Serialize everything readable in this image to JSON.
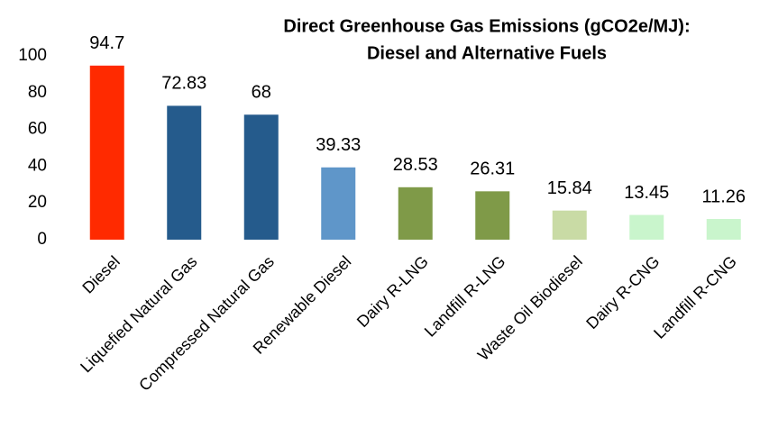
{
  "chart_data": {
    "type": "bar",
    "title": [
      "Direct Greenhouse Gas Emissions (gCO2e/MJ):",
      "Diesel and Alternative Fuels"
    ],
    "categories": [
      "Diesel",
      "Liquefied Natural Gas",
      "Compressed Natural Gas",
      "Renewable Diesel",
      "Dairy R-LNG",
      "Landfill R-LNG",
      "Waste Oil Biodiesel",
      "Dairy R-CNG",
      "Landfill R-CNG"
    ],
    "values": [
      94.7,
      72.83,
      68,
      39.33,
      28.53,
      26.31,
      15.84,
      13.45,
      11.26
    ],
    "colors": [
      "#ff2a00",
      "#255b8c",
      "#255b8c",
      "#5f96c9",
      "#7f9a48",
      "#7f9a48",
      "#c9dba5",
      "#c9f5cc",
      "#c9f5cc"
    ],
    "ylim": [
      0,
      100
    ],
    "yticks": [
      0,
      20,
      40,
      60,
      80,
      100
    ],
    "grid": false
  }
}
